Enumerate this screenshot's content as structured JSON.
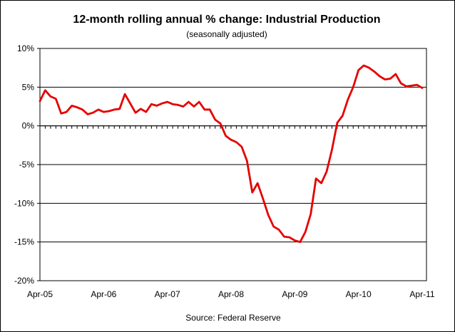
{
  "chart_data": {
    "type": "line",
    "title": "12-month rolling annual % change: Industrial Production",
    "subtitle": "(seasonally adjusted)",
    "source": "Source: Federal Reserve",
    "xlabel": "",
    "ylabel": "",
    "ylim": [
      -20,
      10
    ],
    "yticks": [
      10,
      5,
      0,
      -5,
      -10,
      -15,
      -20
    ],
    "ytick_labels": [
      "10%",
      "5%",
      "0%",
      "-5%",
      "-10%",
      "-15%",
      "-20%"
    ],
    "xtick_labels": [
      "Apr-05",
      "Apr-06",
      "Apr-07",
      "Apr-08",
      "Apr-09",
      "Apr-10",
      "Apr-11"
    ],
    "grid": "horizontal",
    "colors": {
      "line": "#e60000",
      "grid": "#000000",
      "axis": "#000000"
    },
    "series": [
      {
        "x": [
          "Apr-05",
          "May-05",
          "Jun-05",
          "Jul-05",
          "Aug-05",
          "Sep-05",
          "Oct-05",
          "Nov-05",
          "Dec-05",
          "Jan-06",
          "Feb-06",
          "Mar-06",
          "Apr-06",
          "May-06",
          "Jun-06",
          "Jul-06",
          "Aug-06",
          "Sep-06",
          "Oct-06",
          "Nov-06",
          "Dec-06",
          "Jan-07",
          "Feb-07",
          "Mar-07",
          "Apr-07",
          "May-07",
          "Jun-07",
          "Jul-07",
          "Aug-07",
          "Sep-07",
          "Oct-07",
          "Nov-07",
          "Dec-07",
          "Jan-08",
          "Feb-08",
          "Mar-08",
          "Apr-08",
          "May-08",
          "Jun-08",
          "Jul-08",
          "Aug-08",
          "Sep-08",
          "Oct-08",
          "Nov-08",
          "Dec-08",
          "Jan-09",
          "Feb-09",
          "Mar-09",
          "Apr-09",
          "May-09",
          "Jun-09",
          "Jul-09",
          "Aug-09",
          "Sep-09",
          "Oct-09",
          "Nov-09",
          "Dec-09",
          "Jan-10",
          "Feb-10",
          "Mar-10",
          "Apr-10",
          "May-10",
          "Jun-10",
          "Jul-10",
          "Aug-10",
          "Sep-10",
          "Oct-10",
          "Nov-10",
          "Dec-10",
          "Jan-11",
          "Feb-11",
          "Mar-11",
          "Apr-11"
        ],
        "values": [
          3.2,
          4.6,
          3.8,
          3.5,
          1.6,
          1.8,
          2.6,
          2.4,
          2.1,
          1.5,
          1.7,
          2.1,
          1.8,
          1.9,
          2.1,
          2.2,
          4.1,
          2.9,
          1.7,
          2.2,
          1.8,
          2.8,
          2.6,
          2.9,
          3.1,
          2.8,
          2.7,
          2.5,
          3.1,
          2.5,
          3.1,
          2.1,
          2.1,
          0.8,
          0.3,
          -1.3,
          -1.8,
          -2.1,
          -2.7,
          -4.5,
          -8.6,
          -7.4,
          -9.4,
          -11.5,
          -13.0,
          -13.4,
          -14.3,
          -14.4,
          -14.8,
          -15.0,
          -13.7,
          -11.4,
          -6.8,
          -7.4,
          -5.9,
          -3.1,
          0.4,
          1.3,
          3.4,
          5.0,
          7.2,
          7.8,
          7.5,
          7.0,
          6.4,
          6.0,
          6.1,
          6.7,
          5.5,
          5.1,
          5.2,
          5.3,
          4.9
        ]
      }
    ]
  }
}
